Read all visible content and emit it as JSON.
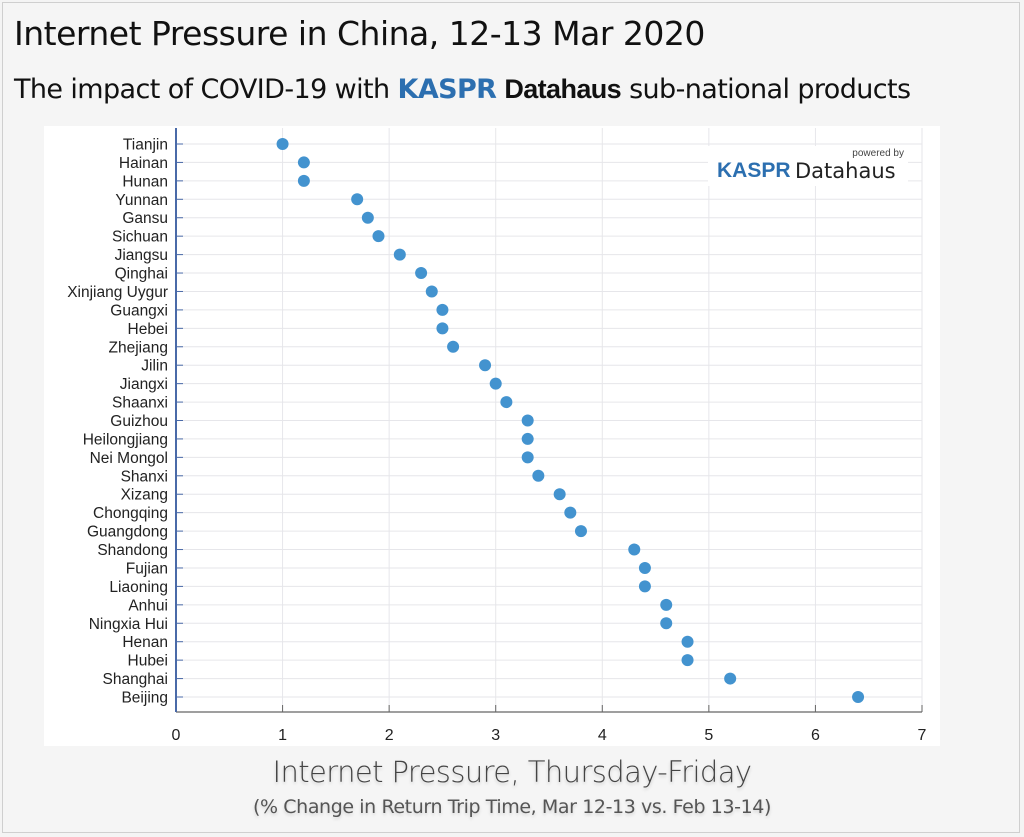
{
  "header": {
    "title": "Internet Pressure in China, 12-13 Mar 2020",
    "subtitle_prefix": "The impact of COVID-19 with",
    "subtitle_brand_a": "KASPR",
    "subtitle_brand_b": "Datahaus",
    "subtitle_suffix": "sub-national products"
  },
  "logo": {
    "powered_by": "powered by",
    "brand_a": "KASPR",
    "brand_b": "Datahaus"
  },
  "colors": {
    "dot": "#4393cf",
    "brand": "#2c6fb0",
    "axis": "#4a6aa8",
    "grid": "#e6e6ea"
  },
  "chart_data": {
    "type": "scatter",
    "title": "Internet Pressure in China, 12-13 Mar 2020",
    "xlabel": "Internet Pressure, Thursday-Friday",
    "xlabel_sub": "(% Change in Return Trip Time, Mar 12-13 vs. Feb 13-14)",
    "ylabel": "",
    "xlim": [
      0,
      7
    ],
    "xticks": [
      "0",
      "1",
      "2",
      "3",
      "4",
      "5",
      "6",
      "7"
    ],
    "grid": true,
    "categories": [
      "Tianjin",
      "Hainan",
      "Hunan",
      "Yunnan",
      "Gansu",
      "Sichuan",
      "Jiangsu",
      "Qinghai",
      "Xinjiang Uygur",
      "Guangxi",
      "Hebei",
      "Zhejiang",
      "Jilin",
      "Jiangxi",
      "Shaanxi",
      "Guizhou",
      "Heilongjiang",
      "Nei Mongol",
      "Shanxi",
      "Xizang",
      "Chongqing",
      "Guangdong",
      "Shandong",
      "Fujian",
      "Liaoning",
      "Anhui",
      "Ningxia Hui",
      "Henan",
      "Hubei",
      "Shanghai",
      "Beijing"
    ],
    "values": [
      1.0,
      1.2,
      1.2,
      1.7,
      1.8,
      1.9,
      2.1,
      2.3,
      2.4,
      2.5,
      2.5,
      2.6,
      2.9,
      3.0,
      3.1,
      3.3,
      3.3,
      3.3,
      3.4,
      3.6,
      3.7,
      3.8,
      4.3,
      4.4,
      4.4,
      4.6,
      4.6,
      4.8,
      4.8,
      5.2,
      6.4
    ]
  }
}
